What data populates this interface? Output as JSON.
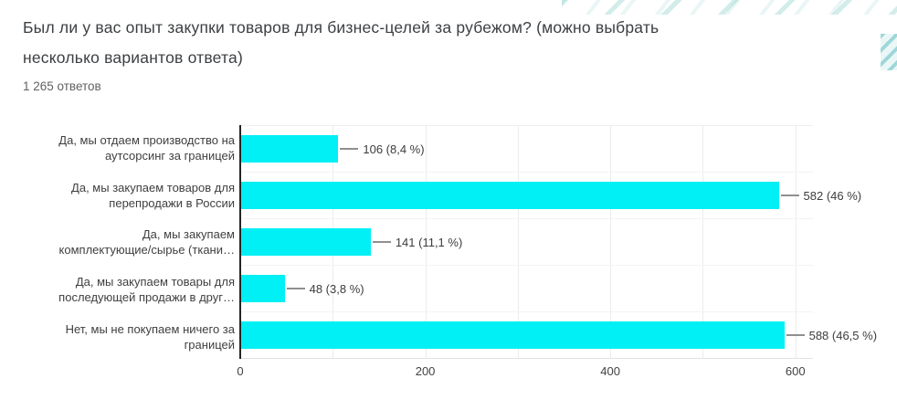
{
  "header": {
    "title": "Был ли у вас опыт закупки товаров для бизнес-целей за рубежом? (можно выбрать несколько вариантов ответа)",
    "title_lines": [
      "Был ли у вас опыт закупки товаров для бизнес-целей за рубежом? (можно выбрать",
      "несколько вариантов ответа)"
    ],
    "responses_count": "1 265 ответов"
  },
  "colors": {
    "bar": "#00F0F5",
    "decor_accent": "#4DB6AC",
    "title_text": "#3C4043",
    "axis_line": "#242424",
    "gridline": "#ECECEC"
  },
  "chart_data": {
    "type": "bar",
    "orientation": "horizontal",
    "categories": [
      "Да, мы отдаем производство на аутсорсинг за границей",
      "Да, мы закупаем товаров для перепродажи в России",
      "Да, мы закупаем комплектующие/сырье (ткани…",
      "Да, мы закупаем товары для последующей продажи в друг…",
      "Нет, мы не покупаем ничего за границей"
    ],
    "categories_lines": [
      [
        "Да, мы отдаем производство на",
        "аутсорсинг за границей"
      ],
      [
        "Да, мы закупаем товаров для",
        "перепродажи в России"
      ],
      [
        "Да, мы закупаем",
        "комплектующие/сырье (ткани…"
      ],
      [
        "Да, мы закупаем товары для",
        "последующей продажи в друг…"
      ],
      [
        "Нет, мы не покупаем ничего за",
        "границей"
      ]
    ],
    "values": [
      106,
      582,
      141,
      48,
      588
    ],
    "percentages": [
      "8,4 %",
      "46 %",
      "11,1 %",
      "3,8 %",
      "46,5 %"
    ],
    "value_labels": [
      "106 (8,4 %)",
      "582 (46 %)",
      "141 (11,1 %)",
      "48 (3,8 %)",
      "588 (46,5 %)"
    ],
    "total_responses": 1265,
    "x_ticks": [
      0,
      200,
      400,
      600
    ],
    "x_tick_labels": [
      "0",
      "200",
      "400",
      "600"
    ],
    "x_gridlines": [
      100,
      200,
      300,
      400,
      500,
      600
    ],
    "xlim": [
      0,
      619
    ],
    "grid": true,
    "legend_position": "none"
  }
}
